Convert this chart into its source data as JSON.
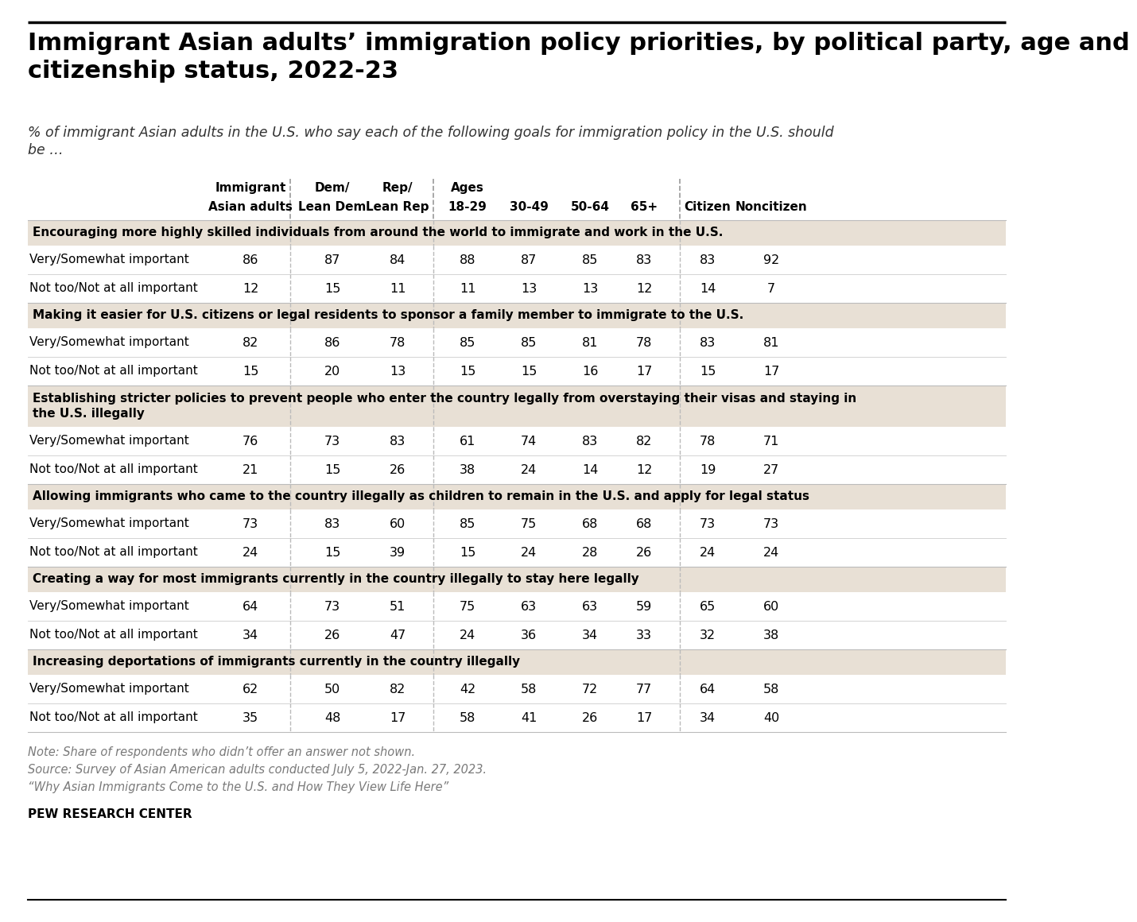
{
  "title": "Immigrant Asian adults’ immigration policy priorities, by political party, age and\ncitizenship status, 2022-23",
  "subtitle": "% of immigrant Asian adults in the U.S. who say each of the following goals for immigration policy in the U.S. should\nbe …",
  "col_headers_line1": [
    "Immigrant",
    "Dem/",
    "Rep/",
    "Ages",
    "",
    "",
    "",
    "",
    ""
  ],
  "col_headers_line2": [
    "Asian adults",
    "Lean Dem",
    "Lean Rep",
    "18-29",
    "30-49",
    "50-64",
    "65+",
    "Citizen",
    "Noncitizen"
  ],
  "sections": [
    {
      "header": "Encouraging more highly skilled individuals from around the world to immigrate and work in the U.S.",
      "header_lines": 1,
      "rows": [
        {
          "label": "Very/Somewhat important",
          "values": [
            86,
            87,
            84,
            88,
            87,
            85,
            83,
            83,
            92
          ]
        },
        {
          "label": "Not too/Not at all important",
          "values": [
            12,
            15,
            11,
            11,
            13,
            13,
            12,
            14,
            7
          ]
        }
      ]
    },
    {
      "header": "Making it easier for U.S. citizens or legal residents to sponsor a family member to immigrate to the U.S.",
      "header_lines": 1,
      "rows": [
        {
          "label": "Very/Somewhat important",
          "values": [
            82,
            86,
            78,
            85,
            85,
            81,
            78,
            83,
            81
          ]
        },
        {
          "label": "Not too/Not at all important",
          "values": [
            15,
            20,
            13,
            15,
            15,
            16,
            17,
            15,
            17
          ]
        }
      ]
    },
    {
      "header": "Establishing stricter policies to prevent people who enter the country legally from overstaying their visas and staying in\nthe U.S. illegally",
      "header_lines": 2,
      "rows": [
        {
          "label": "Very/Somewhat important",
          "values": [
            76,
            73,
            83,
            61,
            74,
            83,
            82,
            78,
            71
          ]
        },
        {
          "label": "Not too/Not at all important",
          "values": [
            21,
            15,
            26,
            38,
            24,
            14,
            12,
            19,
            27
          ]
        }
      ]
    },
    {
      "header": "Allowing immigrants who came to the country illegally as children to remain in the U.S. and apply for legal status",
      "header_lines": 1,
      "rows": [
        {
          "label": "Very/Somewhat important",
          "values": [
            73,
            83,
            60,
            85,
            75,
            68,
            68,
            73,
            73
          ]
        },
        {
          "label": "Not too/Not at all important",
          "values": [
            24,
            15,
            39,
            15,
            24,
            28,
            26,
            24,
            24
          ]
        }
      ]
    },
    {
      "header": "Creating a way for most immigrants currently in the country illegally to stay here legally",
      "header_lines": 1,
      "rows": [
        {
          "label": "Very/Somewhat important",
          "values": [
            64,
            73,
            51,
            75,
            63,
            63,
            59,
            65,
            60
          ]
        },
        {
          "label": "Not too/Not at all important",
          "values": [
            34,
            26,
            47,
            24,
            36,
            34,
            33,
            32,
            38
          ]
        }
      ]
    },
    {
      "header": "Increasing deportations of immigrants currently in the country illegally",
      "header_lines": 1,
      "rows": [
        {
          "label": "Very/Somewhat important",
          "values": [
            62,
            50,
            82,
            42,
            58,
            72,
            77,
            64,
            58
          ]
        },
        {
          "label": "Not too/Not at all important",
          "values": [
            35,
            48,
            17,
            58,
            41,
            26,
            17,
            34,
            40
          ]
        }
      ]
    }
  ],
  "notes": [
    "Note: Share of respondents who didn’t offer an answer not shown.",
    "Source: Survey of Asian American adults conducted July 5, 2022-Jan. 27, 2023.",
    "“Why Asian Immigrants Come to the U.S. and How They View Life Here”"
  ],
  "footer": "PEW RESEARCH CENTER",
  "bg_color": "#ffffff",
  "header_bg": "#e8e0d5",
  "top_line_color": "#000000",
  "bottom_line_color": "#000000",
  "note_color": "#7a7a7a"
}
